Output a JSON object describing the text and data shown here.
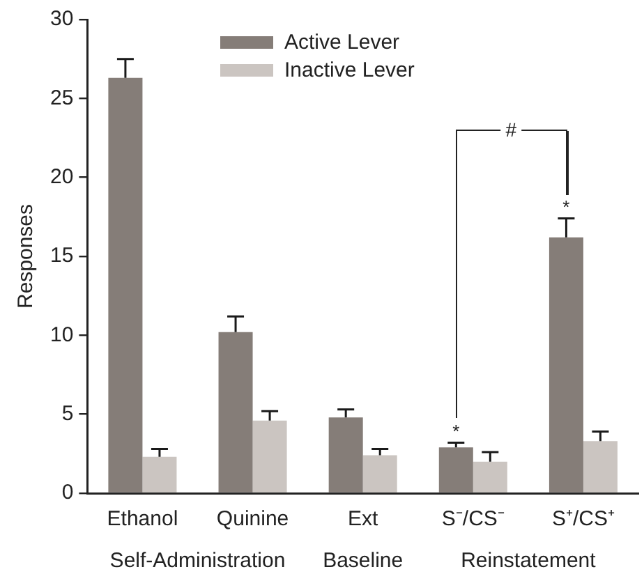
{
  "chart_data": {
    "type": "bar",
    "ylabel": "Responses",
    "categories": [
      "Ethanol",
      "Quinine",
      "Ext",
      "S⁻/CS⁻",
      "S⁺/CS⁺"
    ],
    "series": [
      {
        "name": "Active Lever",
        "color": "#857d78",
        "values": [
          26.3,
          10.2,
          4.8,
          2.9,
          16.2
        ],
        "errors": [
          [
            26.3,
            27.5
          ],
          [
            10.2,
            11.2
          ],
          [
            4.8,
            5.3
          ],
          [
            2.9,
            3.2
          ],
          [
            16.2,
            17.4
          ]
        ]
      },
      {
        "name": "Inactive Lever",
        "color": "#cbc5c1",
        "values": [
          2.3,
          4.6,
          2.4,
          2.0,
          3.3
        ],
        "errors": [
          [
            2.3,
            2.8
          ],
          [
            4.6,
            5.2
          ],
          [
            2.4,
            2.8
          ],
          [
            2.0,
            2.6
          ],
          [
            3.3,
            3.9
          ]
        ]
      }
    ],
    "ylim": [
      0,
      30
    ],
    "yticks": [
      0,
      5,
      10,
      15,
      20,
      25,
      30
    ],
    "grid": false,
    "legend": "top",
    "annotations": [
      "Self-Administration",
      "Baseline",
      "Reinstatement",
      "*",
      "*",
      "#"
    ]
  }
}
